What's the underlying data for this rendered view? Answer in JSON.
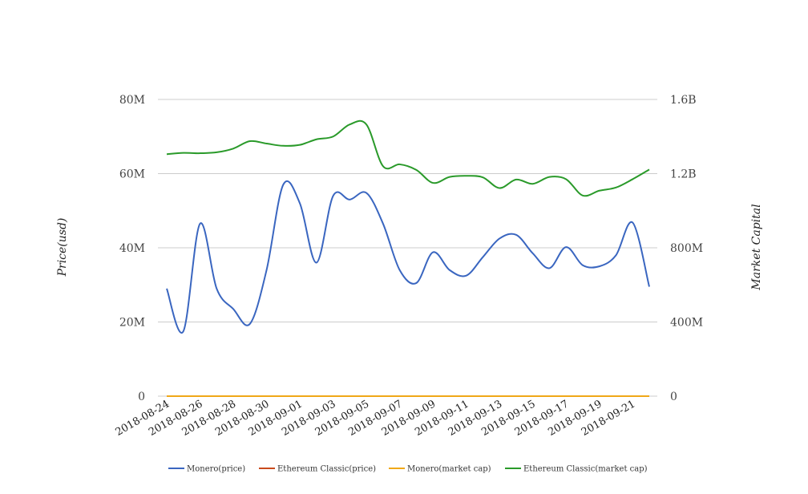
{
  "chart_data": {
    "type": "line",
    "x": [
      "2018-08-24",
      "2018-08-25",
      "2018-08-26",
      "2018-08-27",
      "2018-08-28",
      "2018-08-29",
      "2018-08-30",
      "2018-08-31",
      "2018-09-01",
      "2018-09-02",
      "2018-09-03",
      "2018-09-04",
      "2018-09-05",
      "2018-09-06",
      "2018-09-07",
      "2018-09-08",
      "2018-09-09",
      "2018-09-10",
      "2018-09-11",
      "2018-09-12",
      "2018-09-13",
      "2018-09-14",
      "2018-09-15",
      "2018-09-16",
      "2018-09-17",
      "2018-09-18",
      "2018-09-19",
      "2018-09-20",
      "2018-09-21",
      "2018-09-22"
    ],
    "x_tick_labels": [
      "2018-08-24",
      "2018-08-26",
      "2018-08-28",
      "2018-08-30",
      "2018-09-01",
      "2018-09-03",
      "2018-09-05",
      "2018-09-07",
      "2018-09-09",
      "2018-09-11",
      "2018-09-13",
      "2018-09-15",
      "2018-09-17",
      "2018-09-19",
      "2018-09-21"
    ],
    "y_left": {
      "label": "Price(usd)",
      "min": 0,
      "max": 80000000,
      "ticks": [
        0,
        20000000,
        40000000,
        60000000,
        80000000
      ],
      "tick_labels": [
        "0",
        "20M",
        "40M",
        "60M",
        "80M"
      ]
    },
    "y_right": {
      "label": "Market Capital",
      "min": 0,
      "max": 1600000000,
      "ticks": [
        0,
        400000000,
        800000000,
        1200000000,
        1600000000
      ],
      "tick_labels": [
        "0",
        "400M",
        "800M",
        "1.2B",
        "1.6B"
      ]
    },
    "grid": true,
    "legend_position": "bottom",
    "series": [
      {
        "name": "Monero(price)",
        "axis": "left",
        "color": "#3a66c0",
        "values": [
          29000000,
          17500000,
          46500000,
          29000000,
          23500000,
          19500000,
          34000000,
          57000000,
          52000000,
          36000000,
          54000000,
          53000000,
          54800000,
          46500000,
          34000000,
          30500000,
          38800000,
          34000000,
          32500000,
          37500000,
          42500000,
          43500000,
          38500000,
          34500000,
          40200000,
          35300000,
          35000000,
          38000000,
          46800000,
          29500000
        ]
      },
      {
        "name": "Ethereum Classic(price)",
        "axis": "left",
        "color": "#c94a1c",
        "values": [
          0,
          0,
          0,
          0,
          0,
          0,
          0,
          0,
          0,
          0,
          0,
          0,
          0,
          0,
          0,
          0,
          0,
          0,
          0,
          0,
          0,
          0,
          0,
          0,
          0,
          0,
          0,
          0,
          0,
          0
        ]
      },
      {
        "name": "Monero(market cap)",
        "axis": "right",
        "color": "#f0a818",
        "values": [
          0,
          0,
          0,
          0,
          0,
          0,
          0,
          0,
          0,
          0,
          0,
          0,
          0,
          0,
          0,
          0,
          0,
          0,
          0,
          0,
          0,
          0,
          0,
          0,
          0,
          0,
          0,
          0,
          0,
          0
        ]
      },
      {
        "name": "Ethereum Classic(market cap)",
        "axis": "right",
        "color": "#2a9a2a",
        "values": [
          1305000000,
          1312000000,
          1310000000,
          1315000000,
          1335000000,
          1375000000,
          1362000000,
          1350000000,
          1355000000,
          1385000000,
          1400000000,
          1465000000,
          1465000000,
          1240000000,
          1250000000,
          1220000000,
          1150000000,
          1182000000,
          1188000000,
          1180000000,
          1122000000,
          1168000000,
          1145000000,
          1182000000,
          1170000000,
          1082000000,
          1108000000,
          1125000000,
          1170000000,
          1222000000
        ]
      }
    ]
  }
}
